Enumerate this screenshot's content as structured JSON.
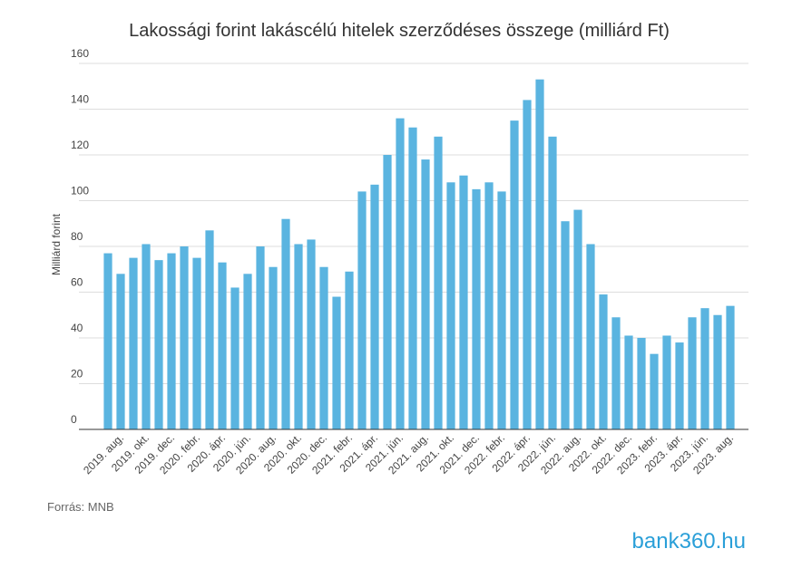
{
  "chart_data": {
    "type": "bar",
    "title": "Lakossági forint lakáscélú hitelek szerződéses összege (milliárd Ft)",
    "y_label": "Milliárd forint",
    "source": "Forrás: MNB",
    "logo": "bank360.hu",
    "categories": [
      null,
      "2019. aug.",
      null,
      "2019. okt.",
      null,
      "2019. dec.",
      null,
      "2020. febr.",
      null,
      "2020. ápr.",
      null,
      "2020. jún.",
      null,
      "2020. aug.",
      null,
      "2020. okt.",
      null,
      "2020. dec.",
      null,
      "2021. febr.",
      null,
      "2021. ápr.",
      null,
      "2021. jún.",
      null,
      "2021. aug.",
      null,
      "2021. okt.",
      null,
      "2021. dec.",
      null,
      "2022. febr.",
      null,
      "2022. ápr.",
      null,
      "2022. jún.",
      null,
      "2022. aug.",
      null,
      "2022. okt.",
      null,
      "2022. dec.",
      null,
      "2023. febr.",
      null,
      "2023. ápr.",
      null,
      "2023. jún.",
      null,
      "2023. aug."
    ],
    "values": [
      77,
      68,
      75,
      81,
      74,
      77,
      80,
      75,
      87,
      73,
      62,
      68,
      80,
      71,
      92,
      81,
      83,
      71,
      58,
      69,
      104,
      107,
      120,
      136,
      132,
      118,
      128,
      108,
      111,
      105,
      108,
      104,
      135,
      144,
      153,
      128,
      91,
      96,
      81,
      59,
      49,
      41,
      40,
      33,
      41,
      38,
      49,
      53,
      50,
      54
    ],
    "color": "#5ab4e0",
    "ylim": [
      0,
      160
    ],
    "yticks": [
      0,
      20,
      40,
      60,
      80,
      100,
      120,
      140,
      160
    ],
    "grid": true
  }
}
